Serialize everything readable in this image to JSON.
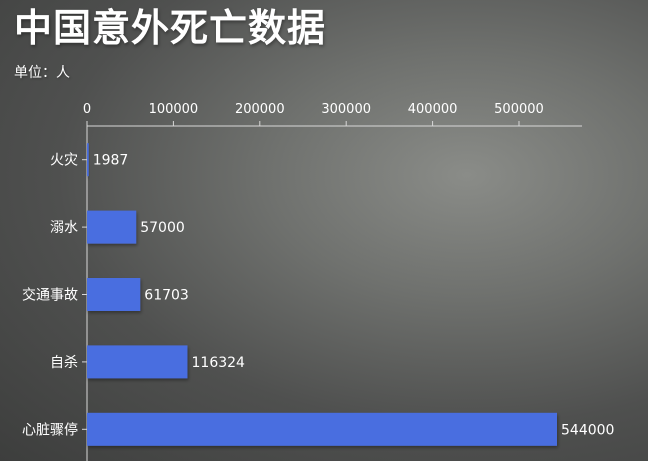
{
  "chart_data": {
    "type": "bar",
    "orientation": "horizontal",
    "title": "中国意外死亡数据",
    "subtitle": "单位：人",
    "categories": [
      "火灾",
      "溺水",
      "交通事故",
      "自杀",
      "心脏骤停"
    ],
    "values": [
      1987,
      57000,
      61703,
      116324,
      544000
    ],
    "data_labels": [
      "1987",
      "57000",
      "61703",
      "116324",
      "544000"
    ],
    "x_ticks": [
      0,
      100000,
      200000,
      300000,
      400000,
      500000
    ],
    "x_tick_labels": [
      "0",
      "100000",
      "200000",
      "300000",
      "400000",
      "500000"
    ],
    "xlim": [
      0,
      570000
    ],
    "axis_position": "top",
    "grid": false,
    "bar_color": "#4a6ee0"
  }
}
